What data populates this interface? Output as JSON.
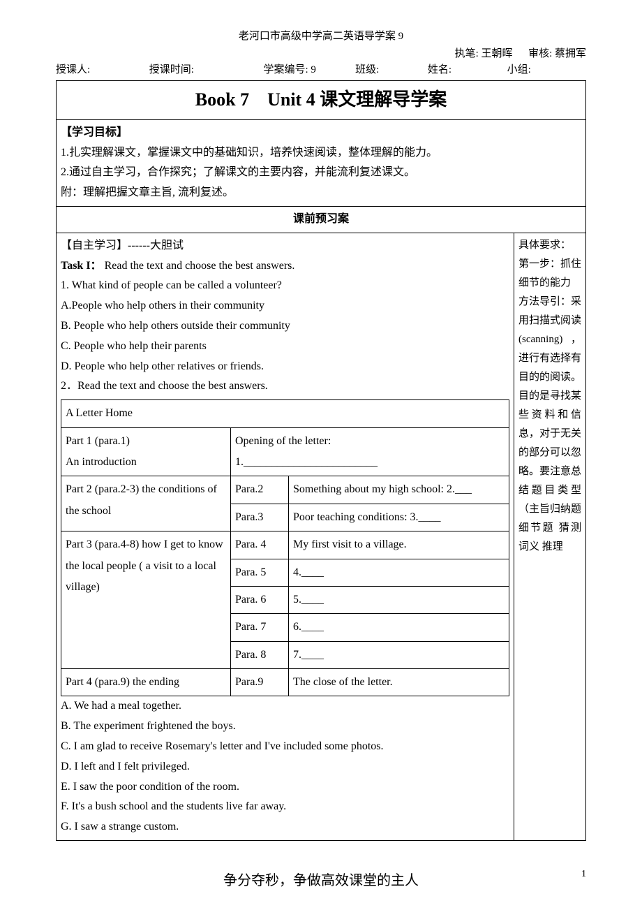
{
  "header": {
    "schoolLine": "老河口市高级中学高二英语导学案 9",
    "authorLabel": "执笔:",
    "authorName": "王朝晖",
    "reviewerLabel": "审核:",
    "reviewerName": "蔡拥军",
    "teacherLabel": "授课人:",
    "timeLabel": "授课时间:",
    "sheetNoLabel": "学案编号:",
    "sheetNo": "9",
    "classLabel": "班级:",
    "nameLabel": "姓名:",
    "groupLabel": "小组:"
  },
  "title": "Book 7 Unit 4  课文理解导学案",
  "objectivesHeader": "【学习目标】",
  "objectives": [
    "1.扎实理解课文，掌握课文中的基础知识，培养快速阅读，整体理解的能力。",
    "2.通过自主学习，合作探究；了解课文的主要内容，并能流利复述课文。",
    "附：理解把握文章主旨, 流利复述。"
  ],
  "previewHeader": "课前预习案",
  "selfStudyHeader": "【自主学习】------大胆试",
  "task1": {
    "title": "Task I：",
    "instruction": "Read the text and choose the best answers.",
    "q1": "1. What kind of people can be called a volunteer?",
    "options": [
      "A.People who help others in their community",
      "B. People who help others outside their community",
      "C. People who help their parents",
      "D. People who help other relatives or friends."
    ],
    "q2": "2．Read the text and choose the best answers."
  },
  "letterTable": {
    "caption": "A Letter Home",
    "rows": [
      {
        "part": "Part 1 (para.1)\nAn introduction",
        "para": "",
        "content": "Opening of the letter:\n1.________________________"
      },
      {
        "part": "Part 2 (para.2-3) the conditions of the school",
        "para": "Para.2",
        "content": "Something about my high school: 2.___"
      },
      {
        "part": "",
        "para": "Para.3",
        "content": "Poor teaching conditions: 3.____"
      },
      {
        "part": "Part 3  (para.4-8) how I get to know the local people ( a visit to a local village)",
        "para": "Para. 4",
        "content": "My first visit to a village."
      },
      {
        "part": "",
        "para": "Para. 5",
        "content": "4.____"
      },
      {
        "part": "",
        "para": "Para. 6",
        "content": "5.____"
      },
      {
        "part": "",
        "para": "Para. 7",
        "content": "6.____"
      },
      {
        "part": "",
        "para": "Para. 8",
        "content": "7.____"
      },
      {
        "part": "Part 4  (para.9) the ending",
        "para": "Para.9",
        "content": "The close of the letter."
      }
    ]
  },
  "answerOptions": [
    "A. We had a meal together.",
    "B. The experiment frightened the boys.",
    "C. I am glad to receive Rosemary's letter and I've included some photos.",
    "D. I left and I felt privileged.",
    "E. I saw the poor condition of the room.",
    "F. It's a bush school and the students live far away.",
    "G. I saw a strange custom."
  ],
  "sidebar": "具体要求：\n第一步：抓住细节的能力\n方法导引：采用扫描式阅读(scanning)，进行有选择有目的的阅读。目的是寻找某些资料和信息，对于无关的部分可以忽略。要注意总结题目类型（主旨归纳题 细节题 猜测词义 推理",
  "footer": "争分夺秒，争做高效课堂的主人",
  "pageNum": "1"
}
